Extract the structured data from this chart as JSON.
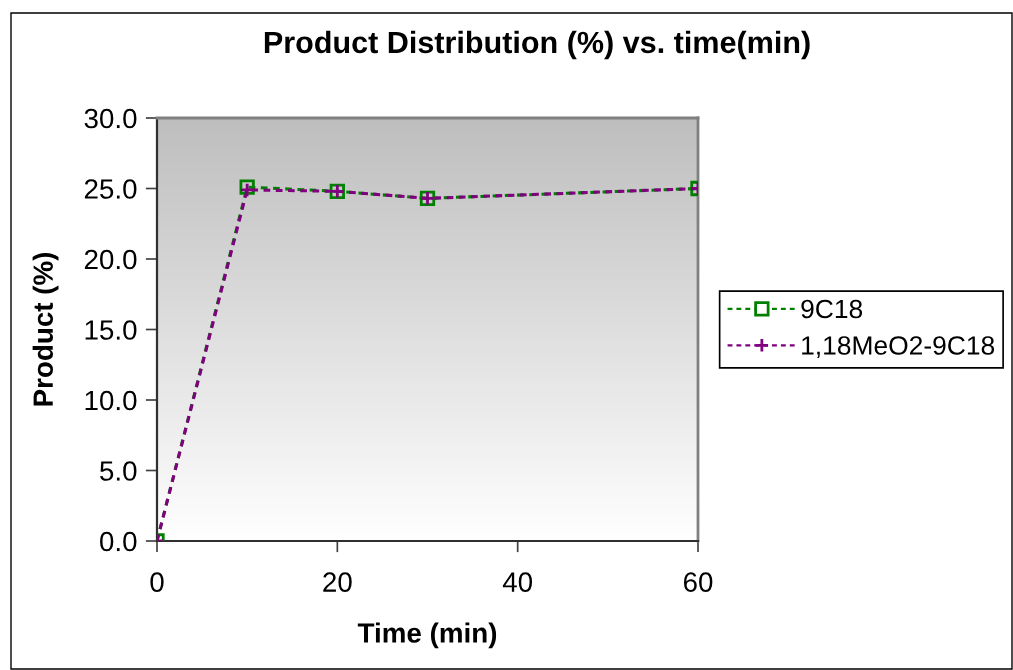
{
  "chart_data": {
    "type": "line",
    "title": "Product Distribution (%) vs. time(min)",
    "xlabel": "Time (min)",
    "ylabel": "Product (%)",
    "x": [
      0,
      10,
      20,
      30,
      60
    ],
    "series": [
      {
        "name": "9C18",
        "color": "#008000",
        "marker": "square",
        "values": [
          0.0,
          25.1,
          24.8,
          24.3,
          25.0
        ]
      },
      {
        "name": "1,18MeO2-9C18",
        "color": "#800080",
        "marker": "cross",
        "values": [
          0.0,
          24.9,
          24.8,
          24.3,
          25.0
        ]
      }
    ],
    "xlim": [
      0,
      60
    ],
    "xticks": [
      0,
      20,
      40,
      60
    ],
    "ylim": [
      0,
      30
    ],
    "yticks": [
      {
        "value": 0,
        "label": "0.0"
      },
      {
        "value": 5,
        "label": "5.0"
      },
      {
        "value": 10,
        "label": "10.0"
      },
      {
        "value": 15,
        "label": "15.0"
      },
      {
        "value": 20,
        "label": "20.0"
      },
      {
        "value": 25,
        "label": "25.0"
      },
      {
        "value": 30,
        "label": "30.0"
      }
    ],
    "line_style": "dashed",
    "grid": false,
    "legend": "right"
  }
}
